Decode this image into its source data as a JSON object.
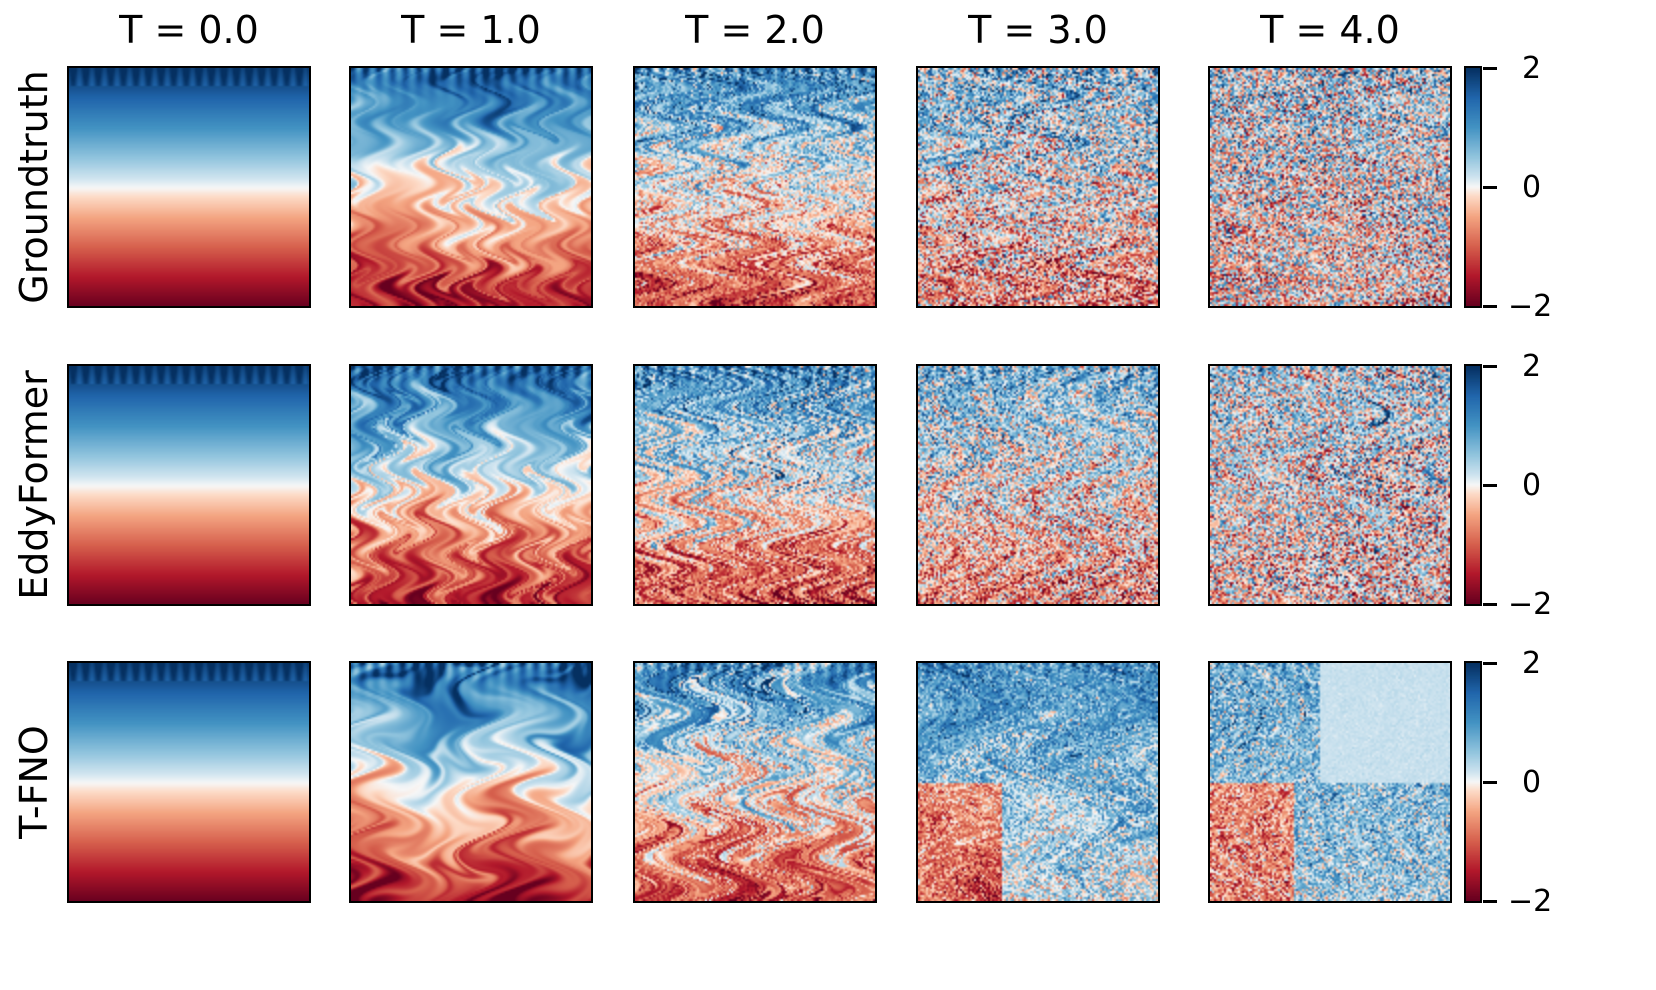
{
  "figure": {
    "columns": [
      {
        "label": "T = 0.0",
        "t": 0.0
      },
      {
        "label": "T = 1.0",
        "t": 1.0
      },
      {
        "label": "T = 2.0",
        "t": 2.0
      },
      {
        "label": "T = 3.0",
        "t": 3.0
      },
      {
        "label": "T = 4.0",
        "t": 4.0
      }
    ],
    "rows": [
      {
        "label": "Groundtruth",
        "style": "groundtruth"
      },
      {
        "label": "EddyFormer",
        "style": "smooth"
      },
      {
        "label": "T-FNO",
        "style": "tfno"
      }
    ],
    "colorbar": {
      "colormap": "RdBu",
      "vmin": -2,
      "vmax": 2,
      "ticks": [
        {
          "value": 2,
          "label": "2"
        },
        {
          "value": 0,
          "label": "0"
        },
        {
          "value": -2,
          "label": "−2"
        }
      ]
    },
    "colors": {
      "dark_blue": "#053061",
      "blue": "#2166ac",
      "light_blue": "#92c5de",
      "white": "#f7f7f7",
      "light_red": "#f4a582",
      "red": "#b2182b",
      "dark_red": "#67001f"
    }
  },
  "chart_data": {
    "type": "heatmap",
    "title": "",
    "layout": "3 rows x 5 columns grid of 2D temperature field snapshots (Rayleigh-Benard style convection)",
    "columns": [
      "T = 0.0",
      "T = 1.0",
      "T = 2.0",
      "T = 3.0",
      "T = 4.0"
    ],
    "rows": [
      "Groundtruth",
      "EddyFormer",
      "T-FNO"
    ],
    "colorbar": {
      "colormap": "RdBu",
      "range": [
        -2,
        2
      ],
      "ticks": [
        -2,
        0,
        2
      ],
      "count": 3,
      "position": "right of each row"
    },
    "xlabel": "",
    "ylabel": "",
    "axis_ticks": "none (panels have no axis ticks)",
    "description": {
      "T = 0.0": "Linear vertical gradient: +2 (blue) at top to -2 (red) at bottom, same for all models",
      "T = 1.0": "Plumes form at top boundary; mostly stratified gradient",
      "T = 2.0": "Mixing layer with rising/falling plumes in middle; blue top, red bottom",
      "T = 3.0": "Groundtruth: noisy turbulent mixing; EddyFormer: swirling mixed red/blue; T-FNO: mostly blue/white with red in lower-left",
      "T = 4.0": "Groundtruth: well-mixed near 0 with blue/red patches; EddyFormer: mixed pale red/blue swirls; T-FNO: mostly blue/white, pale upper-right"
    }
  }
}
